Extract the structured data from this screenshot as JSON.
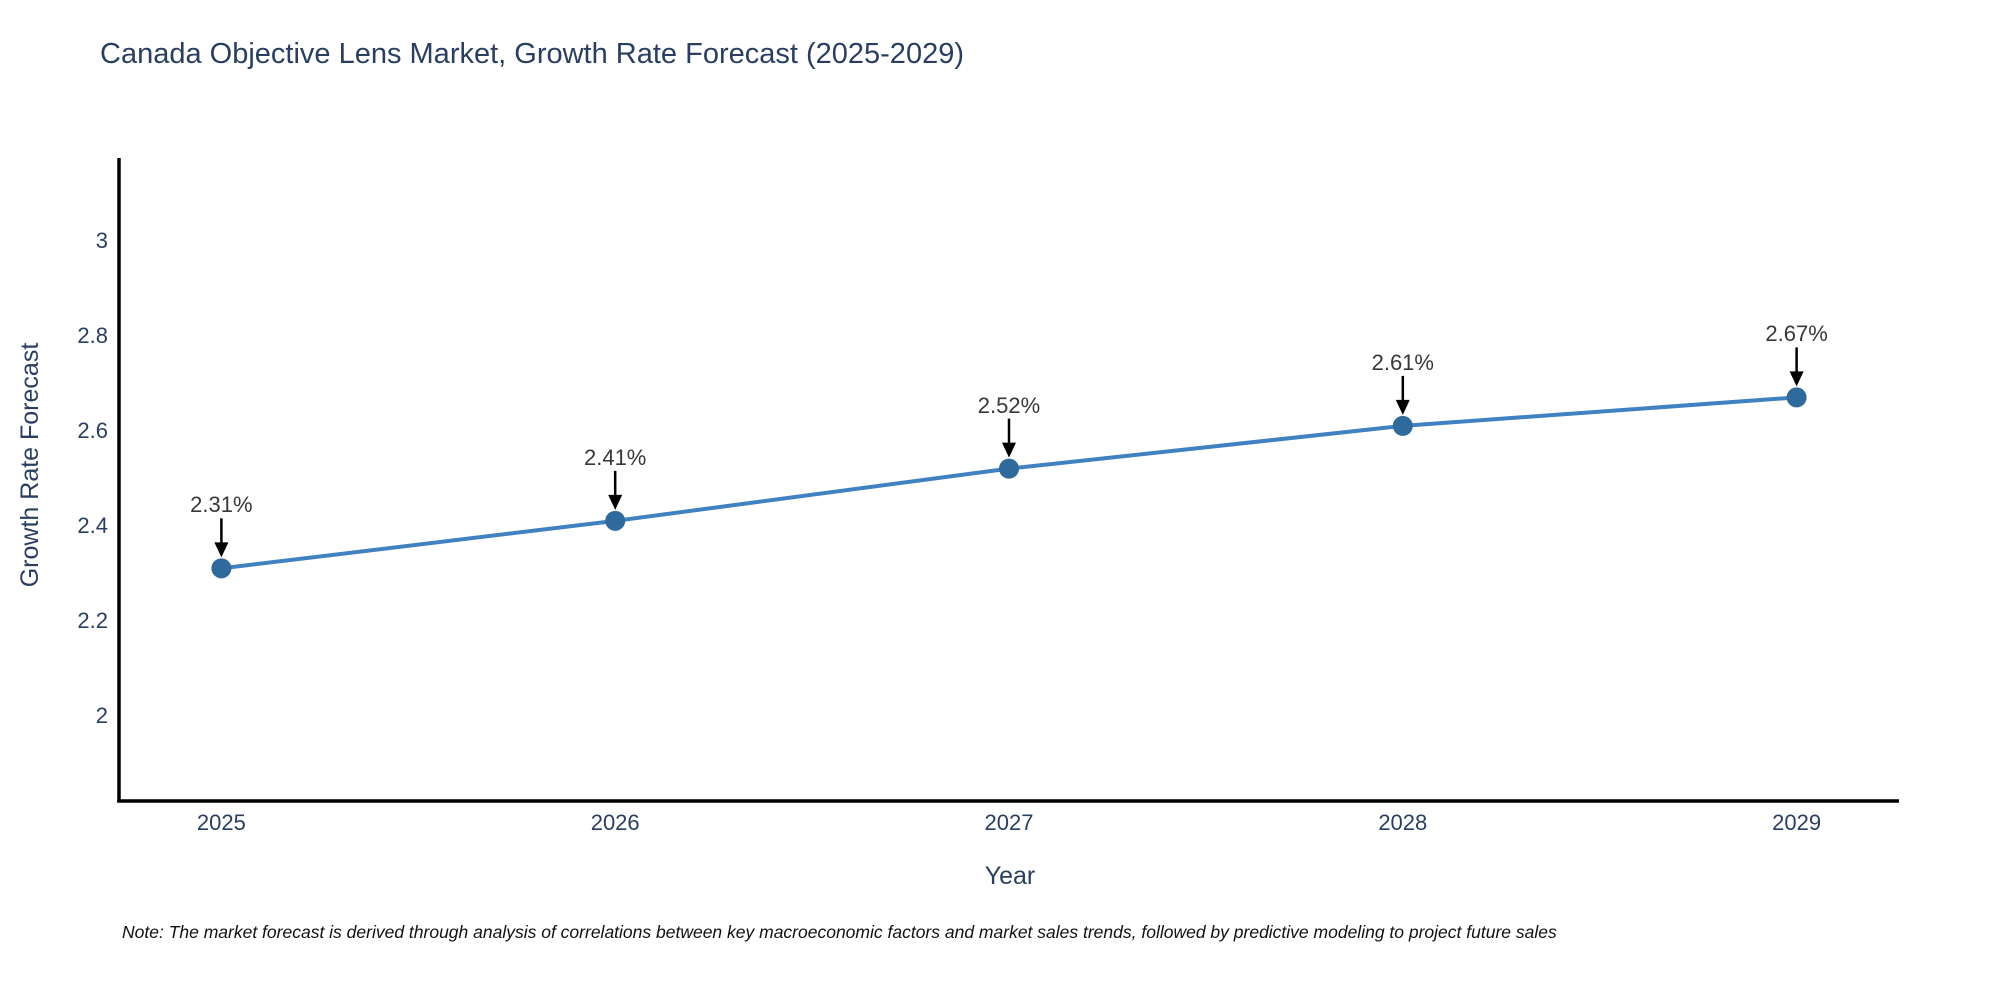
{
  "note": "Note: The market forecast is derived through analysis of correlations between key macroeconomic factors and market sales trends, followed by predictive modeling to project future sales",
  "colors": {
    "line": "#3f81c1",
    "marker": "#30699c",
    "axis": "#000000",
    "arrow": "#000000",
    "title_text": "#2a3f5f",
    "tick_text": "#2a3f5f",
    "annotation_text": "#383838"
  },
  "chart_data": {
    "type": "line",
    "title": "Canada Objective Lens Market, Growth Rate Forecast (2025-2029)",
    "xlabel": "Year",
    "ylabel": "Growth Rate Forecast",
    "x": [
      2025,
      2026,
      2027,
      2028,
      2029
    ],
    "values": [
      2.31,
      2.41,
      2.52,
      2.61,
      2.67
    ],
    "point_labels": [
      "2.31%",
      "2.41%",
      "2.52%",
      "2.61%",
      "2.67%"
    ],
    "xticks": [
      2025,
      2026,
      2027,
      2028,
      2029
    ],
    "xtick_labels": [
      "2025",
      "2026",
      "2027",
      "2028",
      "2029"
    ],
    "yticks": [
      2,
      2.2,
      2.4,
      2.6,
      2.8,
      3
    ],
    "ytick_labels": [
      "2",
      "2.2",
      "2.4",
      "2.6",
      "2.8",
      "3"
    ],
    "xlim": [
      2024.74,
      2029.26
    ],
    "ylim": [
      1.82,
      3.17
    ],
    "grid": false,
    "legend": false,
    "marker_size": 10,
    "annotation_style": "black-down-arrow-above-each-point"
  }
}
